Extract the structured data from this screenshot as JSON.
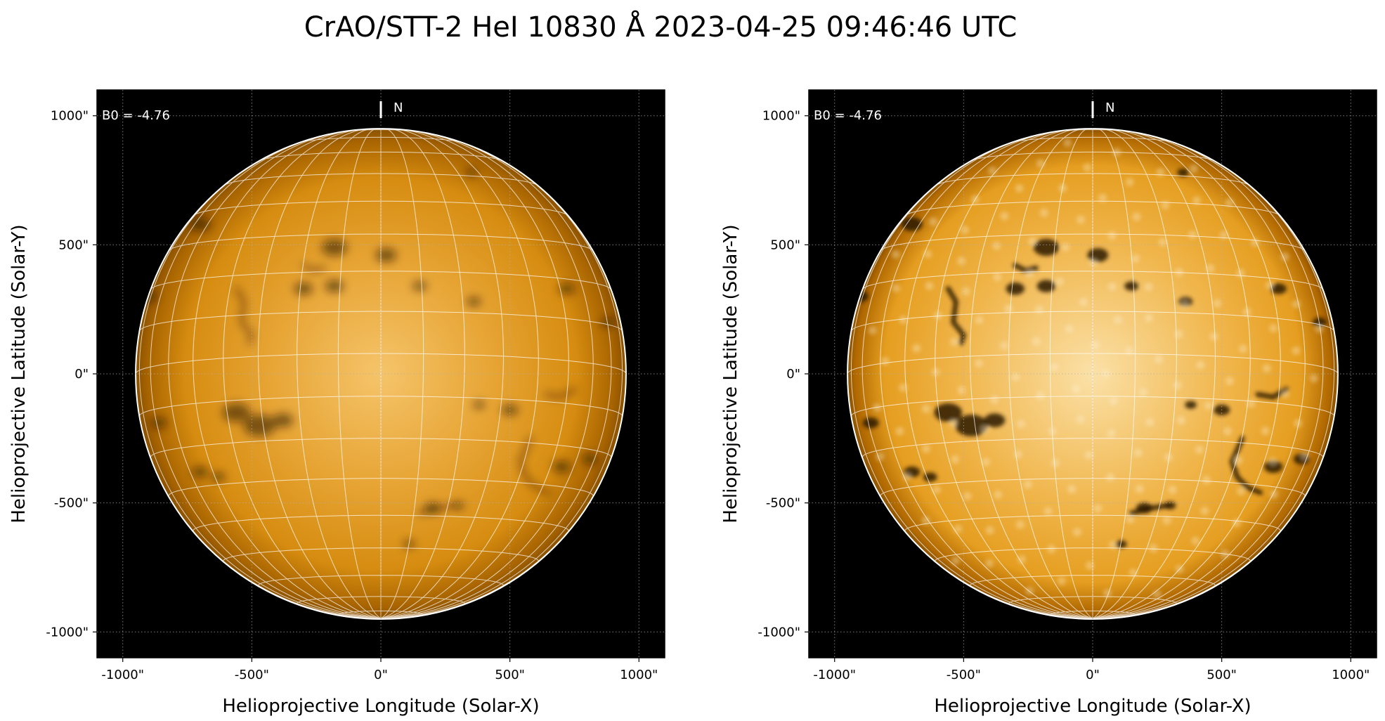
{
  "title": "CrAO/STT-2 HeI 10830 Å 2023-04-25 09:46:46 UTC",
  "colors": {
    "background": "#000000",
    "disk_limb": "#8a5100",
    "disk_mid": "#d68c10",
    "disk_center": "#f5c46a",
    "disk_enhanced_center": "#fbe1a8",
    "filament": "#2a1600",
    "grid": "#ffffff"
  },
  "chart_data": [
    {
      "type": "heatmap",
      "name": "left-panel",
      "xlabel": "Helioprojective Longitude (Solar-X)",
      "ylabel": "Helioprojective Latitude (Solar-Y)",
      "xlim": [
        -1100,
        1100
      ],
      "ylim": [
        -1100,
        1100
      ],
      "x_ticks": [
        -1000,
        -500,
        0,
        500,
        1000
      ],
      "y_ticks": [
        -1000,
        -500,
        0,
        500,
        1000
      ],
      "x_tick_labels": [
        "-1000\"",
        "-500\"",
        "0\"",
        "500\"",
        "1000\""
      ],
      "y_tick_labels": [
        "-1000\"",
        "-500\"",
        "0\"",
        "500\"",
        "1000\""
      ],
      "solar_radius_arcsec": 950,
      "b0_deg": -4.76,
      "b0_label": "B0 = -4.76",
      "north_label": "N",
      "grid": true,
      "contrast": "normal"
    },
    {
      "type": "heatmap",
      "name": "right-panel",
      "xlabel": "Helioprojective Longitude (Solar-X)",
      "ylabel": "Helioprojective Latitude (Solar-Y)",
      "xlim": [
        -1100,
        1100
      ],
      "ylim": [
        -1100,
        1100
      ],
      "x_ticks": [
        -1000,
        -500,
        0,
        500,
        1000
      ],
      "y_ticks": [
        -1000,
        -500,
        0,
        500,
        1000
      ],
      "x_tick_labels": [
        "-1000\"",
        "-500\"",
        "0\"",
        "500\"",
        "1000\""
      ],
      "y_tick_labels": [
        "-1000\"",
        "-500\"",
        "0\"",
        "500\"",
        "1000\""
      ],
      "solar_radius_arcsec": 950,
      "b0_deg": -4.76,
      "b0_label": "B0 = -4.76",
      "north_label": "N",
      "grid": true,
      "contrast": "enhanced"
    }
  ],
  "features": [
    {
      "x": -180,
      "y": 490,
      "size": 55
    },
    {
      "x": 20,
      "y": 460,
      "size": 45
    },
    {
      "x": -300,
      "y": 330,
      "size": 40
    },
    {
      "x": -180,
      "y": 340,
      "size": 40
    },
    {
      "x": 150,
      "y": 340,
      "size": 30
    },
    {
      "x": 360,
      "y": 280,
      "size": 30
    },
    {
      "x": 720,
      "y": 330,
      "size": 35
    },
    {
      "x": -700,
      "y": 580,
      "size": 45
    },
    {
      "x": 350,
      "y": 780,
      "size": 25
    },
    {
      "x": -560,
      "y": -150,
      "size": 60
    },
    {
      "x": -470,
      "y": -200,
      "size": 70
    },
    {
      "x": -380,
      "y": -180,
      "size": 45
    },
    {
      "x": -860,
      "y": -190,
      "size": 35
    },
    {
      "x": 500,
      "y": -140,
      "size": 35
    },
    {
      "x": 380,
      "y": -120,
      "size": 25
    },
    {
      "x": -700,
      "y": -380,
      "size": 35
    },
    {
      "x": -630,
      "y": -400,
      "size": 30
    },
    {
      "x": 700,
      "y": -360,
      "size": 40
    },
    {
      "x": 810,
      "y": -330,
      "size": 35
    },
    {
      "x": 200,
      "y": -520,
      "size": 35
    },
    {
      "x": 300,
      "y": -510,
      "size": 25
    },
    {
      "x": 110,
      "y": -660,
      "size": 25
    },
    {
      "x": -900,
      "y": 300,
      "size": 35
    },
    {
      "x": 880,
      "y": 200,
      "size": 30
    }
  ],
  "filaments": [
    {
      "points": [
        [
          -560,
          330
        ],
        [
          -530,
          280
        ],
        [
          -540,
          200
        ],
        [
          -500,
          150
        ],
        [
          -510,
          120
        ]
      ]
    },
    {
      "points": [
        [
          580,
          -250
        ],
        [
          540,
          -340
        ],
        [
          560,
          -400
        ],
        [
          600,
          -440
        ],
        [
          650,
          -460
        ]
      ]
    },
    {
      "points": [
        [
          -300,
          420
        ],
        [
          -260,
          400
        ],
        [
          -220,
          410
        ]
      ]
    },
    {
      "points": [
        [
          150,
          -540
        ],
        [
          230,
          -520
        ],
        [
          290,
          -510
        ]
      ]
    },
    {
      "points": [
        [
          640,
          -80
        ],
        [
          700,
          -90
        ],
        [
          750,
          -60
        ]
      ]
    }
  ]
}
